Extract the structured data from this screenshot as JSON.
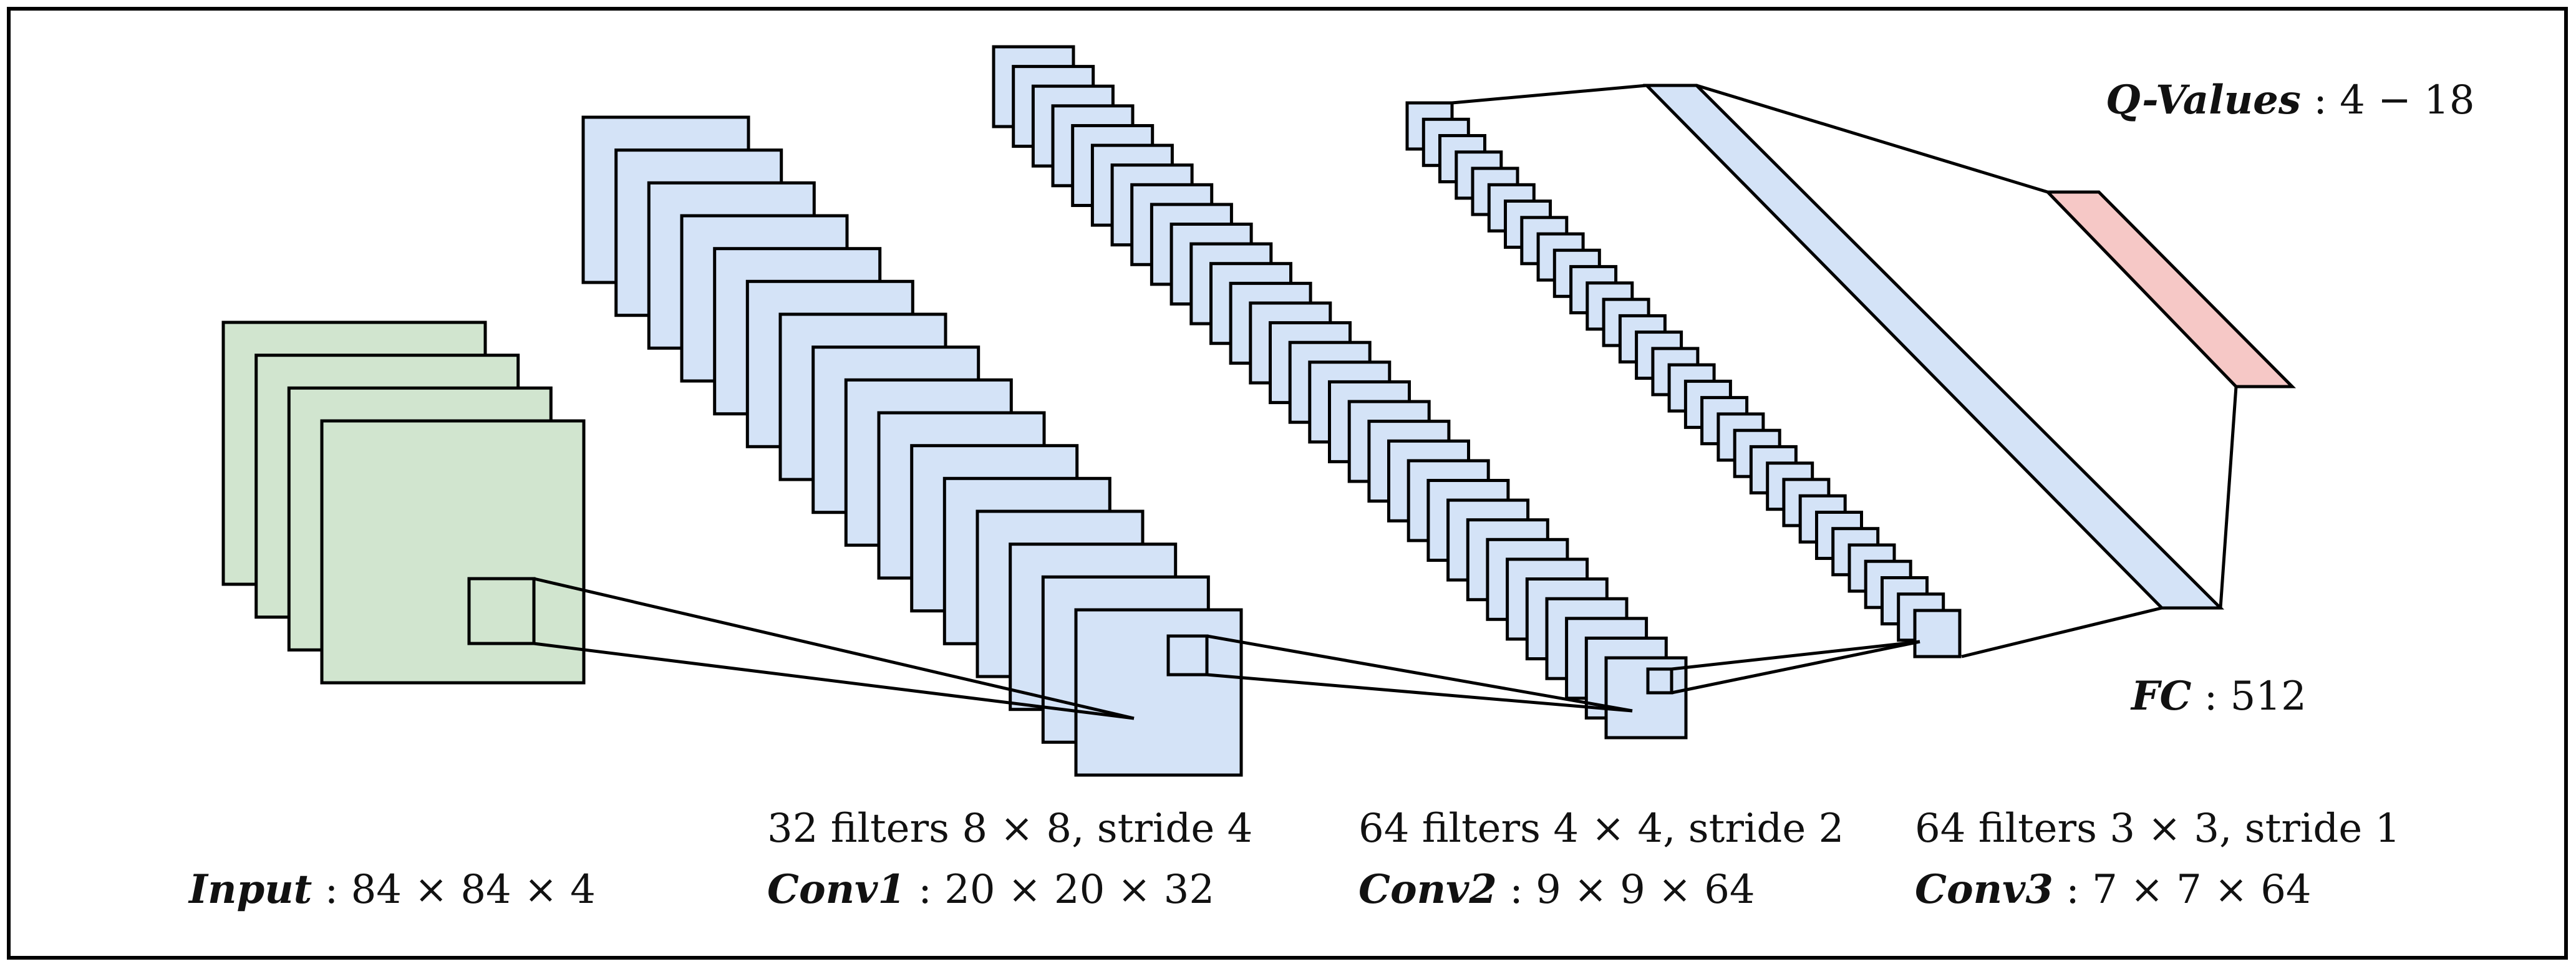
{
  "colors": {
    "input_fill": "#d1e5cf",
    "conv_fill": "#d4e3f7",
    "fc_fill": "#d4e3f7",
    "output_fill": "#f6c8c6",
    "stroke": "#000000"
  },
  "stacks": {
    "input": 4,
    "conv1": 16,
    "conv2": 32,
    "conv3": 32
  },
  "labels": {
    "input": {
      "name": "Input",
      "dims": " : 84 × 84 × 4"
    },
    "conv1": {
      "filters": "32 filters 8 × 8, stride 4",
      "name": "Conv1",
      "dims": " : 20 × 20 × 32"
    },
    "conv2": {
      "filters": "64 filters 4 × 4, stride 2",
      "name": "Conv2",
      "dims": " : 9 × 9 × 64"
    },
    "conv3": {
      "filters": "64 filters 3 × 3, stride 1",
      "name": "Conv3",
      "dims": " : 7 × 7 × 64"
    },
    "fc": {
      "name": "FC",
      "dims": " : 512"
    },
    "qvalues": {
      "name": "Q-Values",
      "dims": " : 4 − 18"
    }
  }
}
